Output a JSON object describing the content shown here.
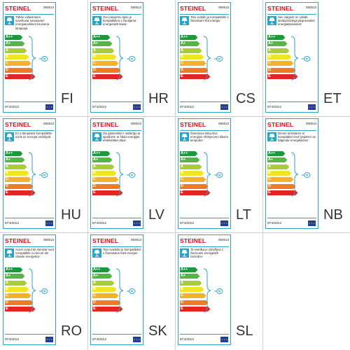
{
  "colors": {
    "border": "#2aa3c6",
    "logo": "#e30613",
    "eu_flag": "#1f3e9b",
    "classes": [
      "#1a9a3b",
      "#57b447",
      "#a8cd3a",
      "#f0e523",
      "#f4b12b",
      "#ee7b25",
      "#e52521"
    ]
  },
  "classes": [
    "A++",
    "A+",
    "A",
    "B",
    "C",
    "D",
    "E"
  ],
  "logo_text": "STEINEL",
  "product_code": "050513",
  "regulation": "874/2012",
  "icons": [
    "lamp-icon",
    "bulb-icon",
    "eu-flag-icon",
    "brace-icon"
  ],
  "labels": [
    {
      "lang": "FI",
      "desc": "Tähän valaisimeen soveltuvat seuraavien energialuokkien lisuiveria lamppuja:"
    },
    {
      "lang": "HR",
      "desc": "Ovo rasvjetno tijelo je kompatibilno s žaruljama energetskih klasa:"
    },
    {
      "lang": "CS",
      "desc": "Toto svítidlo je kompatibilní s žárovkami tříd energie:"
    },
    {
      "lang": "ET",
      "desc": "See valgusti on sobilik lambipirnidega järgnevatest energiaklassidest:"
    },
    {
      "lang": "HU",
      "desc": "Ez a lámpatest kompatibilis izzók az energia osztályok:"
    },
    {
      "lang": "LV",
      "desc": "Šis gaismeklis ir saderīgs ar spuldzēm ar šādu energijas efektivitātes klasi:"
    },
    {
      "lang": "LT",
      "desc": "Šviestuvui tinka šios energijos efektyvumo klasės lemputės:"
    },
    {
      "lang": "NB",
      "desc": "Denne armaturen er kompatibel med lyspærer av følgende energiklasser:"
    },
    {
      "lang": "RO",
      "desc": "Acest corpul de iluminat sunt compatibile cu becuri din clasele energetice:"
    },
    {
      "lang": "SK",
      "desc": "Toto svietidlo je kompatibilné s žiarovkami tried energie:"
    },
    {
      "lang": "SL",
      "desc": "Ta svetilka je združljiva z žarnicami energijskih razredov:"
    }
  ]
}
